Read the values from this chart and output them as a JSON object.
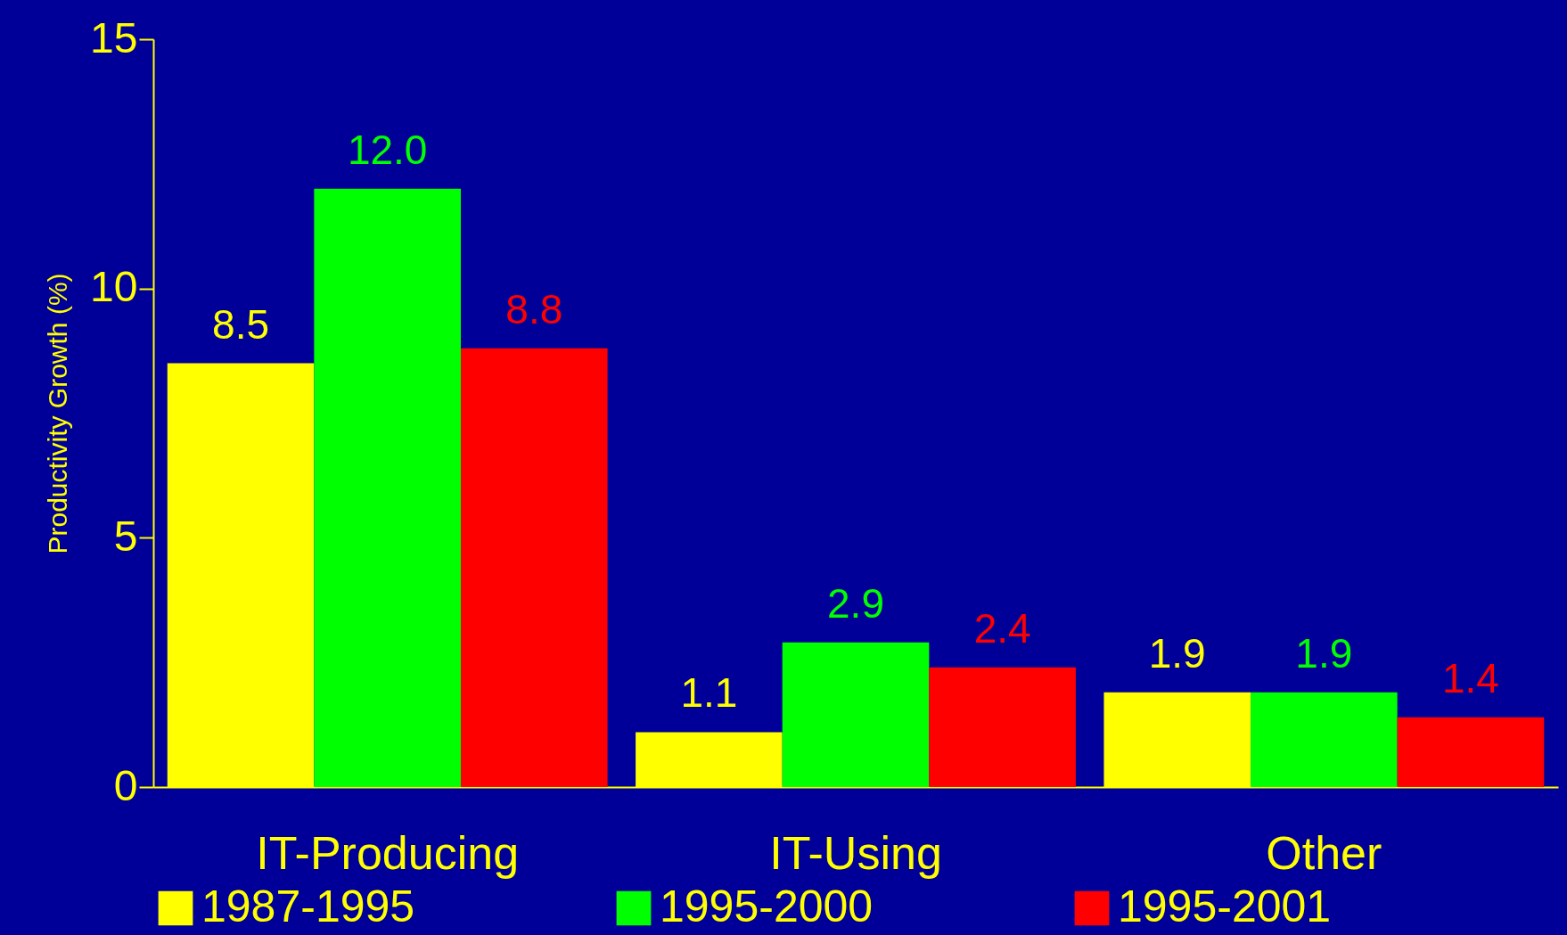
{
  "chart_data": {
    "type": "bar",
    "ylabel": "Productivity Growth (%)",
    "categories": [
      "IT-Producing",
      "IT-Using",
      "Other"
    ],
    "series": [
      {
        "name": "1987-1995",
        "color": "#ffff00",
        "values": [
          8.5,
          1.1,
          1.9
        ],
        "value_labels": [
          "8.5",
          "1.1",
          "1.9"
        ]
      },
      {
        "name": "1995-2000",
        "color": "#00ff00",
        "values": [
          12.0,
          2.9,
          1.9
        ],
        "value_labels": [
          "12.0",
          "2.9",
          "1.9"
        ]
      },
      {
        "name": "1995-2001",
        "color": "#ff0000",
        "values": [
          8.8,
          2.4,
          1.4
        ],
        "value_labels": [
          "8.8",
          "2.4",
          "1.4"
        ]
      }
    ],
    "ylim": [
      0,
      15
    ],
    "yticks": [
      0,
      5,
      10,
      15
    ],
    "grid": false,
    "legend": "bottom"
  }
}
